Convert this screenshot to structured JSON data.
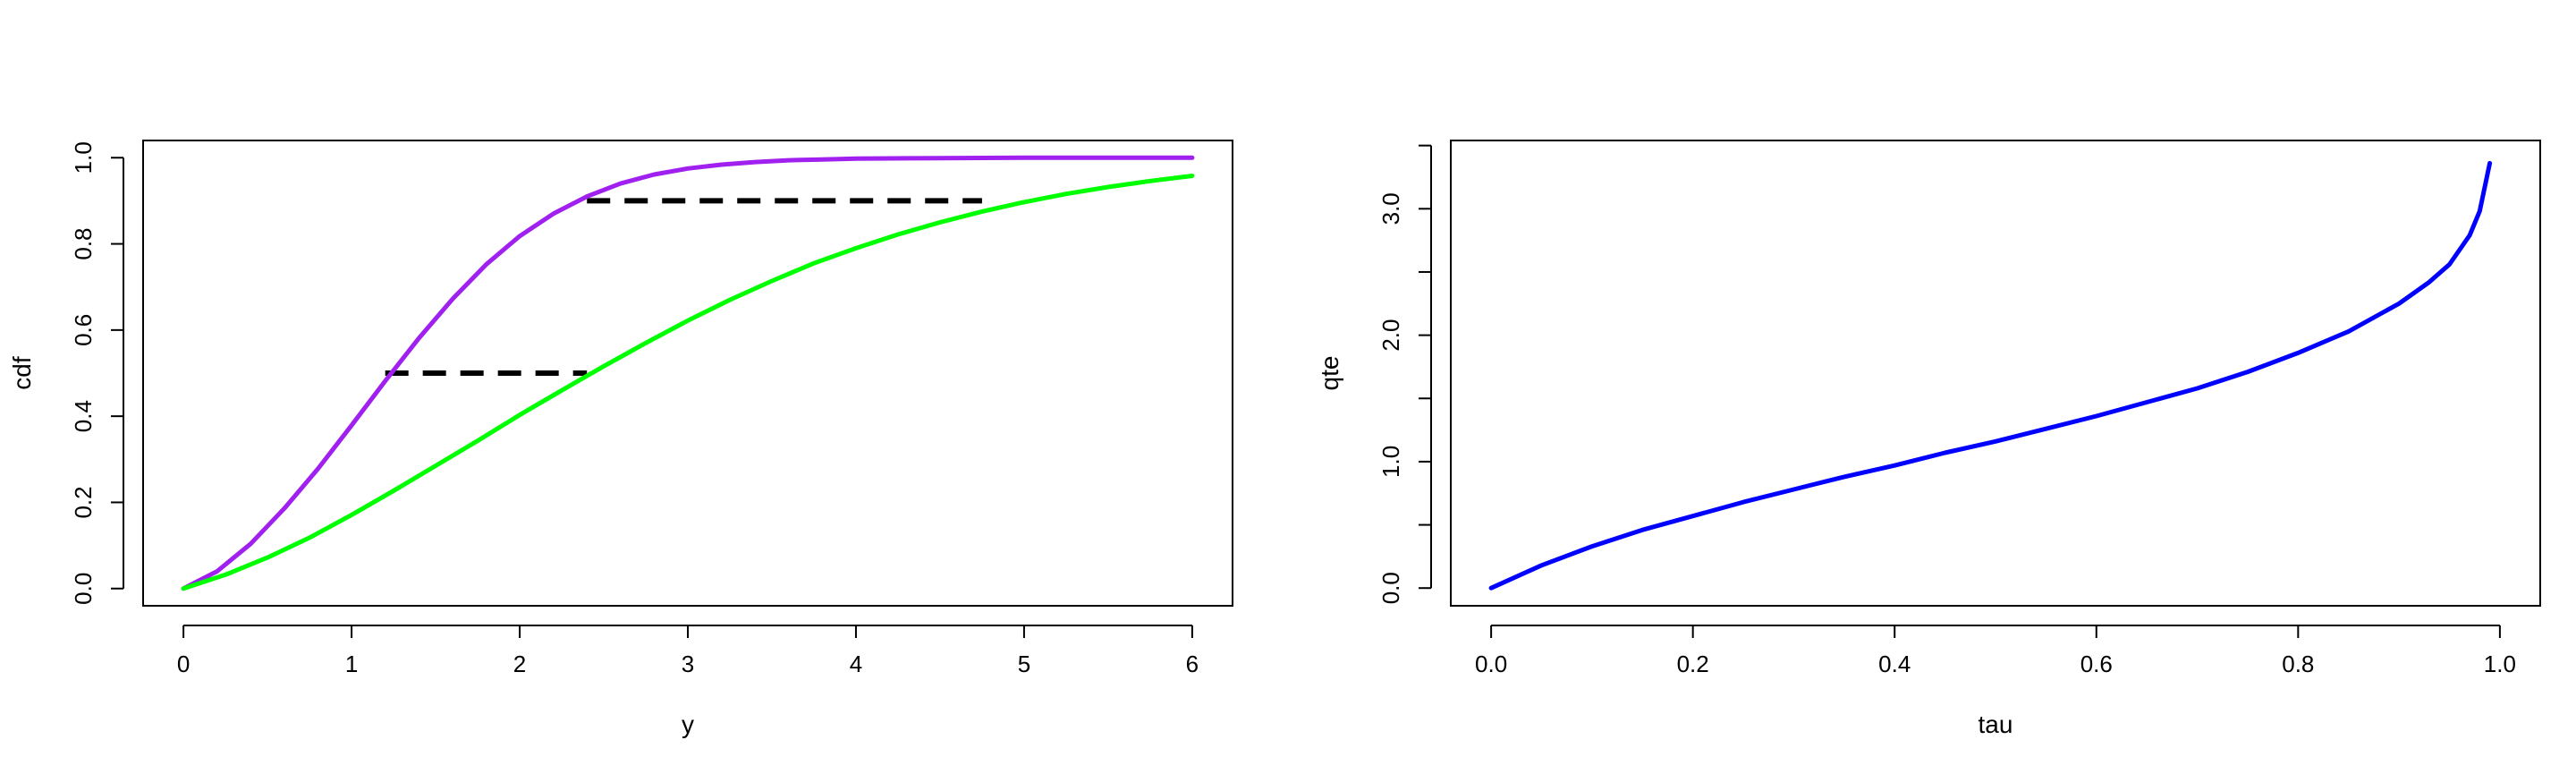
{
  "chart_data": [
    {
      "type": "line",
      "title": "",
      "xlabel": "y",
      "ylabel": "cdf",
      "xlim": [
        -0.24,
        6.24
      ],
      "ylim": [
        -0.04,
        1.04
      ],
      "xticks": [
        0,
        1,
        2,
        3,
        4,
        5,
        6
      ],
      "yticks": [
        0.0,
        0.2,
        0.4,
        0.6,
        0.8,
        1.0
      ],
      "xtick_labels": [
        "0",
        "1",
        "2",
        "3",
        "4",
        "5",
        "6"
      ],
      "ytick_labels": [
        "0.0",
        "0.2",
        "0.4",
        "0.6",
        "0.8",
        "1.0"
      ],
      "grid": false,
      "series": [
        {
          "color": "#a020f0",
          "x": [
            0,
            0.2,
            0.4,
            0.6,
            0.8,
            1.0,
            1.2,
            1.4,
            1.6,
            1.8,
            2.0,
            2.2,
            2.4,
            2.6,
            2.8,
            3.0,
            3.2,
            3.4,
            3.6,
            3.8,
            4.0,
            4.5,
            5.0,
            5.5,
            6.0
          ],
          "y": [
            0.0,
            0.04,
            0.104,
            0.186,
            0.278,
            0.379,
            0.482,
            0.581,
            0.672,
            0.752,
            0.818,
            0.87,
            0.91,
            0.94,
            0.961,
            0.975,
            0.984,
            0.99,
            0.994,
            0.996,
            0.998,
            0.999,
            1.0,
            1.0,
            1.0
          ]
        },
        {
          "color": "#00ff00",
          "x": [
            0,
            0.25,
            0.5,
            0.75,
            1.0,
            1.25,
            1.5,
            1.75,
            2.0,
            2.25,
            2.5,
            2.75,
            3.0,
            3.25,
            3.5,
            3.75,
            4.0,
            4.25,
            4.5,
            4.75,
            5.0,
            5.25,
            5.5,
            5.75,
            6.0
          ],
          "y": [
            0.0,
            0.032,
            0.072,
            0.118,
            0.171,
            0.227,
            0.285,
            0.343,
            0.403,
            0.46,
            0.516,
            0.57,
            0.622,
            0.67,
            0.714,
            0.755,
            0.79,
            0.822,
            0.85,
            0.875,
            0.897,
            0.916,
            0.932,
            0.946,
            0.958
          ]
        }
      ],
      "segments": [
        {
          "color": "#000000",
          "dashed": true,
          "x": [
            1.2,
            2.4
          ],
          "y": [
            0.5,
            0.5
          ]
        },
        {
          "color": "#000000",
          "dashed": true,
          "x": [
            2.4,
            4.75
          ],
          "y": [
            0.9,
            0.9
          ]
        }
      ]
    },
    {
      "type": "line",
      "title": "",
      "xlabel": "tau",
      "ylabel": "qte",
      "xlim": [
        -0.04,
        1.04
      ],
      "ylim": [
        -0.14,
        3.54
      ],
      "xticks": [
        0.0,
        0.2,
        0.4,
        0.6,
        0.8,
        1.0
      ],
      "yticks": [
        0.0,
        0.5,
        1.0,
        1.5,
        2.0,
        2.5,
        3.0,
        3.5
      ],
      "xtick_labels": [
        "0.0",
        "0.2",
        "0.4",
        "0.6",
        "0.8",
        "1.0"
      ],
      "ytick_labels": [
        "0.0",
        "",
        "1.0",
        "",
        "2.0",
        "",
        "3.0",
        ""
      ],
      "grid": false,
      "series": [
        {
          "color": "#0000ff",
          "x": [
            0.0,
            0.05,
            0.1,
            0.15,
            0.2,
            0.25,
            0.3,
            0.35,
            0.4,
            0.45,
            0.5,
            0.55,
            0.6,
            0.65,
            0.7,
            0.75,
            0.8,
            0.85,
            0.9,
            0.93,
            0.95,
            0.97,
            0.98,
            0.99
          ],
          "y": [
            0.0,
            0.18,
            0.33,
            0.46,
            0.57,
            0.68,
            0.78,
            0.88,
            0.97,
            1.07,
            1.16,
            1.26,
            1.36,
            1.47,
            1.58,
            1.71,
            1.86,
            2.03,
            2.25,
            2.42,
            2.56,
            2.79,
            2.98,
            3.36
          ]
        }
      ],
      "segments": []
    }
  ]
}
